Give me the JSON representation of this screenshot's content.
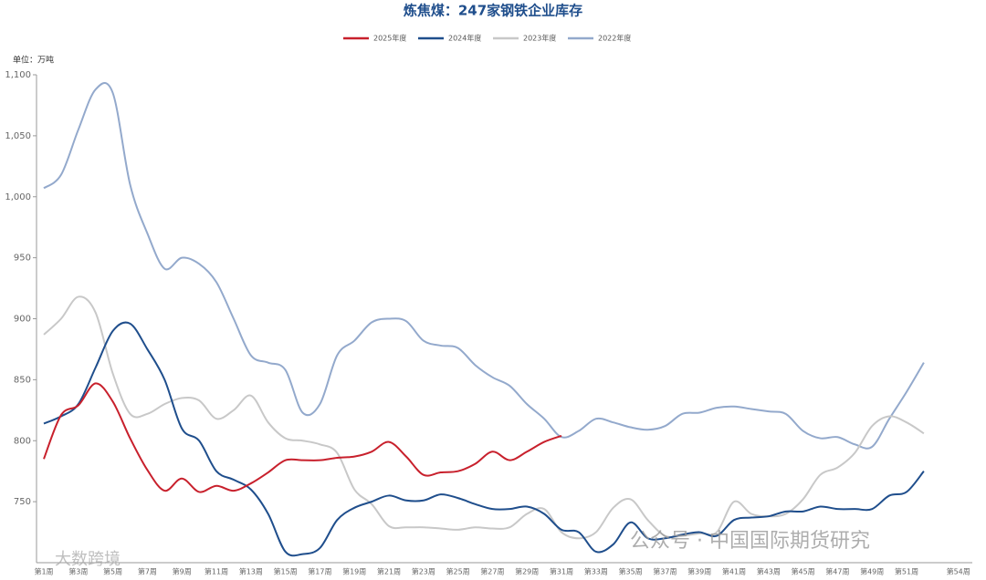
{
  "chart_data": {
    "type": "line",
    "title": "炼焦煤：247家钢铁企业库存",
    "unit_label": "单位：万吨",
    "watermarks": [
      "大数跨境",
      "公众号 · 中国国际期货研究"
    ],
    "categories": [
      "第1周",
      null,
      "第3周",
      null,
      "第5周",
      null,
      "第7周",
      null,
      "第9周",
      null,
      "第11周",
      null,
      "第13周",
      null,
      "第15周",
      null,
      "第17周",
      null,
      "第19周",
      null,
      "第21周",
      null,
      "第23周",
      null,
      "第25周",
      null,
      "第27周",
      null,
      "第29周",
      null,
      "第31周",
      null,
      "第33周",
      null,
      "第35周",
      null,
      "第37周",
      null,
      "第39周",
      null,
      "第41周",
      null,
      "第43周",
      null,
      "第45周",
      null,
      "第47周",
      null,
      "第49周",
      null,
      "第51周",
      null,
      null,
      "第54周"
    ],
    "ylim": [
      700,
      1100
    ],
    "yticks": [
      750,
      800,
      850,
      900,
      950,
      {
        "value": 1000,
        "label": "1,000"
      },
      {
        "value": 1050,
        "label": "1,050"
      },
      {
        "value": 1100,
        "label": "1,100"
      }
    ],
    "grid": false,
    "series": [
      {
        "name": "2025年度",
        "color": "#c8202c",
        "values": [
          785,
          821,
          829,
          847,
          832,
          802,
          776,
          759,
          769,
          758,
          763,
          759,
          765,
          774,
          784,
          784,
          784,
          786,
          787,
          791,
          799,
          787,
          772,
          774,
          775,
          781,
          791,
          784,
          791,
          799,
          804,
          null,
          null,
          null,
          null,
          null,
          null,
          null,
          null,
          null,
          null,
          null,
          null,
          null,
          null,
          null,
          null,
          null,
          null,
          null,
          null,
          null,
          null,
          null
        ]
      },
      {
        "name": "2024年度",
        "color": "#1f4e8c",
        "values": [
          814,
          820,
          830,
          860,
          890,
          896,
          875,
          850,
          810,
          800,
          775,
          768,
          760,
          740,
          709,
          707,
          712,
          735,
          745,
          750,
          755,
          751,
          751,
          756,
          753,
          748,
          744,
          744,
          746,
          740,
          727,
          725,
          709,
          715,
          733,
          720,
          720,
          723,
          725,
          722,
          735,
          737,
          738,
          742,
          742,
          746,
          744,
          744,
          744,
          755,
          758,
          775,
          null,
          null
        ]
      },
      {
        "name": "2023年度",
        "color": "#c8c8c8",
        "values": [
          887,
          900,
          918,
          905,
          855,
          822,
          822,
          830,
          835,
          833,
          818,
          825,
          837,
          815,
          802,
          800,
          797,
          790,
          760,
          748,
          730,
          729,
          729,
          728,
          727,
          729,
          728,
          729,
          740,
          744,
          725,
          720,
          725,
          745,
          752,
          735,
          722,
          722,
          724,
          725,
          750,
          740,
          738,
          740,
          752,
          772,
          778,
          790,
          812,
          820,
          815,
          806,
          null,
          null
        ]
      },
      {
        "name": "2022年度",
        "color": "#93a9cc",
        "values": [
          1007,
          1018,
          1055,
          1088,
          1085,
          1010,
          970,
          941,
          950,
          945,
          930,
          900,
          870,
          864,
          858,
          823,
          830,
          870,
          882,
          897,
          900,
          898,
          882,
          878,
          876,
          862,
          852,
          845,
          830,
          818,
          803,
          808,
          818,
          815,
          811,
          809,
          812,
          822,
          823,
          827,
          828,
          826,
          824,
          822,
          808,
          802,
          803,
          797,
          795,
          818,
          840,
          864,
          null,
          null
        ]
      }
    ]
  }
}
